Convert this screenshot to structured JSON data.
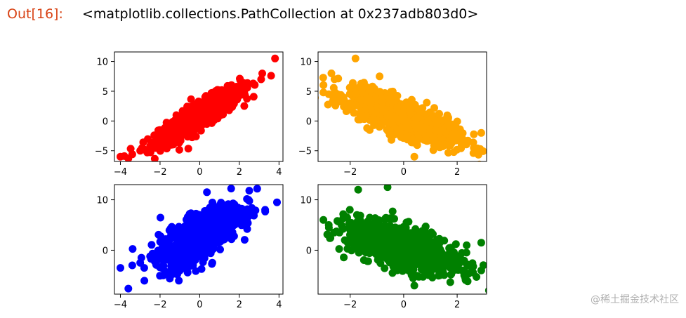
{
  "cell": {
    "prompt": "Out[16]:",
    "output": "<matplotlib.collections.PathCollection at 0x237adb803d0>"
  },
  "watermark": "@稀土掘金技术社区",
  "chart_data": [
    {
      "type": "scatter",
      "color": "#ff0000",
      "xlim": [
        -4.3,
        4.2
      ],
      "ylim": [
        -6.8,
        11.6
      ],
      "xticks": [
        -4,
        -2,
        0,
        2,
        4
      ],
      "yticks": [
        -5,
        0,
        5,
        10
      ],
      "series": [
        {
          "shape": "positive-correlation cloud, slope ~1.6",
          "x": [
            -4.0,
            -3.8,
            -3.6,
            -3.4,
            -3.0,
            -2.8,
            -2.5,
            -2.3,
            -2.1,
            -1.9,
            -1.7,
            -1.5,
            -1.3,
            -1.1,
            -0.9,
            -0.7,
            -0.5,
            -0.3,
            -0.1,
            0.1,
            0.3,
            0.5,
            0.7,
            0.9,
            1.1,
            1.3,
            1.5,
            1.7,
            1.9,
            2.1,
            2.4,
            2.7,
            3.1,
            3.6,
            3.8
          ],
          "y": [
            -6.0,
            -5.9,
            -6.3,
            -5.6,
            -5.0,
            -4.8,
            -4.2,
            -3.8,
            -3.5,
            -3.0,
            -2.5,
            -2.0,
            -1.6,
            -1.0,
            -0.8,
            -0.4,
            0.0,
            0.3,
            0.5,
            0.9,
            1.2,
            1.6,
            2.0,
            2.4,
            2.8,
            3.2,
            3.6,
            4.0,
            4.5,
            5.0,
            5.6,
            6.3,
            7.0,
            7.6,
            10.5
          ]
        }
      ]
    },
    {
      "type": "scatter",
      "color": "#ffa500",
      "xlim": [
        -3.2,
        3.1
      ],
      "ylim": [
        -6.8,
        11.6
      ],
      "xticks": [
        -2,
        0,
        2
      ],
      "yticks": [
        -5,
        0,
        5,
        10
      ],
      "series": [
        {
          "shape": "negative-correlation cloud, slope ~-1.3",
          "x": [
            -3.0,
            -2.8,
            -2.6,
            -2.4,
            -2.2,
            -2.0,
            -1.8,
            -1.6,
            -1.4,
            -1.2,
            -1.0,
            -0.8,
            -0.6,
            -0.4,
            -0.2,
            0.0,
            0.2,
            0.4,
            0.6,
            0.8,
            1.0,
            1.2,
            1.4,
            1.6,
            1.8,
            2.0,
            2.2,
            2.4,
            2.6,
            2.9,
            -1.8,
            -2.7,
            -0.9,
            0.4
          ],
          "y": [
            4.8,
            4.5,
            4.0,
            3.6,
            3.2,
            3.0,
            2.6,
            2.2,
            2.0,
            1.7,
            1.4,
            1.0,
            0.8,
            0.5,
            0.2,
            0.0,
            -0.3,
            -0.5,
            -0.8,
            -1.0,
            -1.3,
            -1.6,
            -1.9,
            -2.1,
            -2.4,
            -2.7,
            -3.0,
            -3.3,
            -3.6,
            -2.0,
            10.5,
            8.0,
            7.5,
            -6.0
          ]
        }
      ]
    },
    {
      "type": "scatter",
      "color": "#0000ff",
      "xlim": [
        -4.3,
        4.2
      ],
      "ylim": [
        -8.7,
        13.0
      ],
      "xticks": [
        -4,
        -2,
        0,
        2,
        4
      ],
      "yticks": [
        0,
        10
      ],
      "series": [
        {
          "shape": "positive-correlation cloud, slope ~1.5",
          "x": [
            -4.0,
            -3.6,
            -3.4,
            -3.0,
            -2.8,
            -2.5,
            -2.3,
            -2.1,
            -1.9,
            -1.7,
            -1.5,
            -1.3,
            -1.1,
            -0.9,
            -0.7,
            -0.5,
            -0.3,
            -0.1,
            0.1,
            0.3,
            0.5,
            0.7,
            0.9,
            1.1,
            1.3,
            1.5,
            1.7,
            1.9,
            2.2,
            2.5,
            2.9,
            3.3,
            3.9
          ],
          "y": [
            -3.5,
            -7.6,
            -3.0,
            -2.5,
            -3.5,
            -1.2,
            -2.0,
            -1.0,
            -1.5,
            -1.0,
            -0.5,
            -1.5,
            0.0,
            0.5,
            1.0,
            1.5,
            1.5,
            2.0,
            2.5,
            3.0,
            3.5,
            4.0,
            4.5,
            5.0,
            5.5,
            6.0,
            6.5,
            7.0,
            8.0,
            11.8,
            12.2,
            8.0,
            9.5
          ]
        }
      ]
    },
    {
      "type": "scatter",
      "color": "#008000",
      "xlim": [
        -3.2,
        3.1
      ],
      "ylim": [
        -8.7,
        13.0
      ],
      "xticks": [
        -2,
        0,
        2
      ],
      "yticks": [
        0,
        10
      ],
      "series": [
        {
          "shape": "negative-correlation cloud, slope ~-1.0",
          "x": [
            -3.0,
            -2.8,
            -2.6,
            -2.4,
            -2.2,
            -2.0,
            -1.8,
            -1.6,
            -1.4,
            -1.2,
            -1.0,
            -0.8,
            -0.6,
            -0.4,
            -0.2,
            0.0,
            0.2,
            0.4,
            0.6,
            0.8,
            1.0,
            1.2,
            1.4,
            1.6,
            1.8,
            2.0,
            2.2,
            2.4,
            2.6,
            2.9,
            -1.7,
            -0.6,
            0.4,
            2.9
          ],
          "y": [
            6.0,
            5.0,
            3.5,
            3.5,
            2.0,
            4.0,
            2.5,
            1.5,
            1.0,
            2.0,
            0.5,
            0.8,
            0.0,
            -0.5,
            0.5,
            0.0,
            -1.0,
            -0.5,
            -2.0,
            -1.5,
            -2.0,
            -1.0,
            -2.5,
            -3.0,
            -3.5,
            -2.0,
            -4.0,
            -3.0,
            -3.2,
            1.5,
            12.0,
            12.5,
            -7.0,
            -4.0
          ]
        }
      ]
    }
  ]
}
